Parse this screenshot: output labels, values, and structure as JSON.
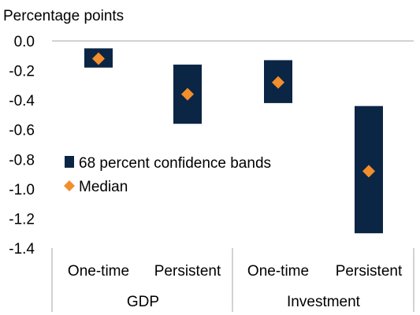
{
  "chart_data": {
    "type": "range",
    "title": "Percentage points",
    "ylim": [
      -1.4,
      0.0
    ],
    "yticks": [
      0.0,
      -0.2,
      -0.4,
      -0.6,
      -0.8,
      -1.0,
      -1.2,
      -1.4
    ],
    "ytick_labels": [
      "0.0",
      "-0.2",
      "-0.4",
      "-0.6",
      "-0.8",
      "-1.0",
      "-1.2",
      "-1.4"
    ],
    "groups": [
      {
        "label": "GDP",
        "categories": [
          "One-time",
          "Persistent"
        ]
      },
      {
        "label": "Investment",
        "categories": [
          "One-time",
          "Persistent"
        ]
      }
    ],
    "series": [
      {
        "name": "68 percent confidence bands",
        "color": "#0b2545",
        "low": [
          -0.18,
          -0.56,
          -0.42,
          -1.3
        ],
        "high": [
          -0.05,
          -0.16,
          -0.13,
          -0.44
        ]
      },
      {
        "name": "Median",
        "color": "#f28e2b",
        "values": [
          -0.12,
          -0.36,
          -0.28,
          -0.88
        ]
      }
    ],
    "legend_position": "middle-left",
    "grid": false
  }
}
